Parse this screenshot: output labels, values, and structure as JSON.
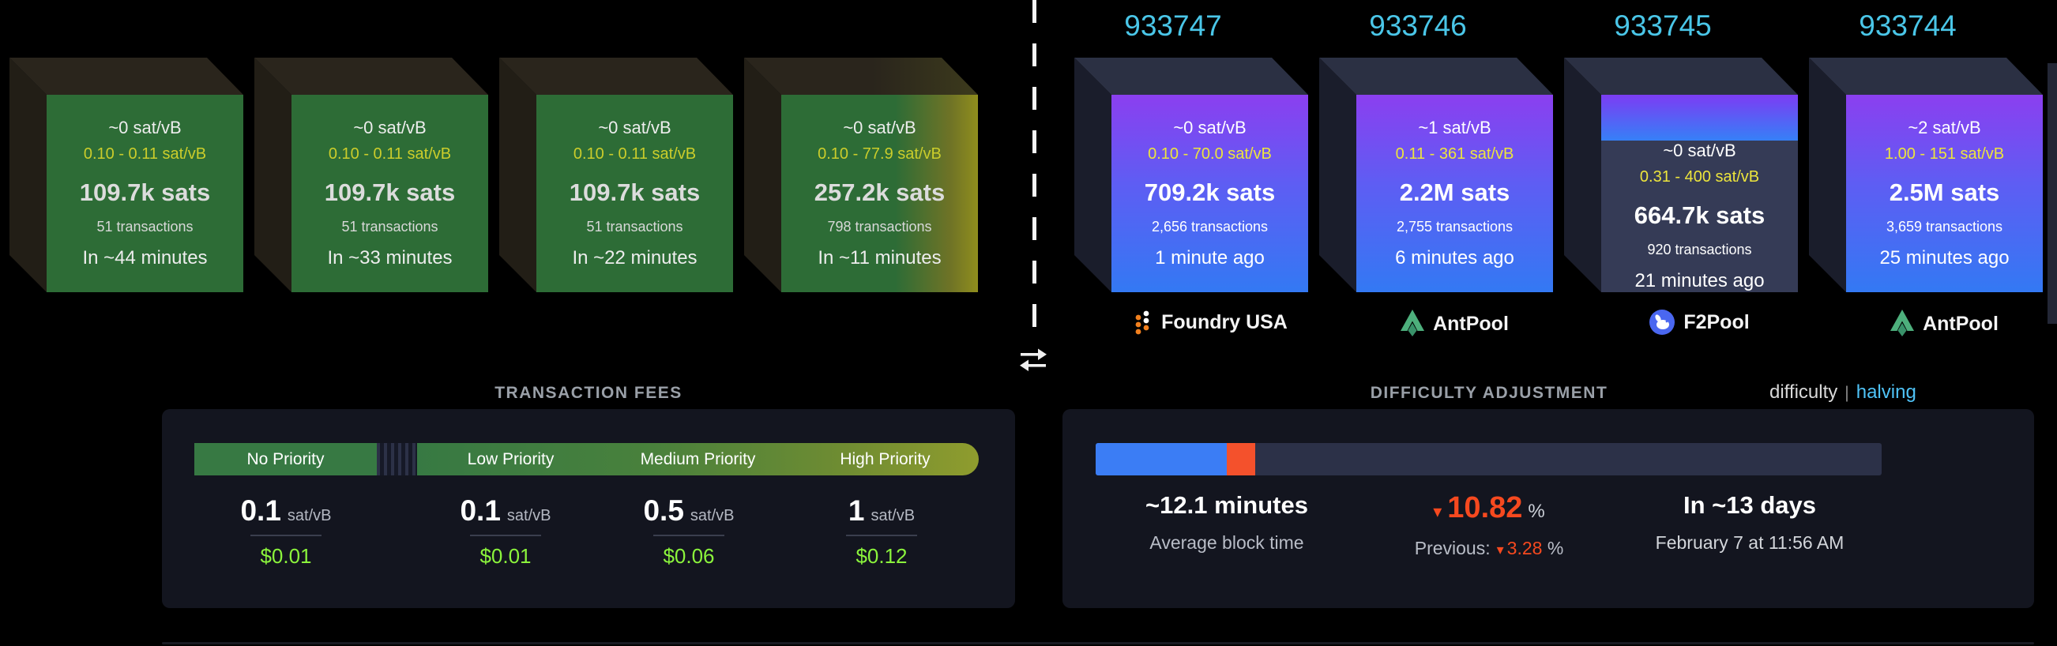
{
  "colors": {
    "height_link_cyan": "#4ac6e8",
    "fee_range_yellow": "#e8e337",
    "usd_green": "#8bf43c",
    "negative_red": "#f6491f",
    "progress_blue": "#3b7df5",
    "antpool_green": "#4daf7c",
    "f2pool_blue": "#4a67f0",
    "foundry_orange": "#f2801e"
  },
  "mempool_blocks": [
    {
      "median_fee": "~0 sat/vB",
      "fee_range": "0.10 - 0.11 sat/vB",
      "total_fees": "109.7k sats",
      "tx_count": "51 transactions",
      "eta": "In ~44 minutes"
    },
    {
      "median_fee": "~0 sat/vB",
      "fee_range": "0.10 - 0.11 sat/vB",
      "total_fees": "109.7k sats",
      "tx_count": "51 transactions",
      "eta": "In ~33 minutes"
    },
    {
      "median_fee": "~0 sat/vB",
      "fee_range": "0.10 - 0.11 sat/vB",
      "total_fees": "109.7k sats",
      "tx_count": "51 transactions",
      "eta": "In ~22 minutes"
    },
    {
      "median_fee": "~0 sat/vB",
      "fee_range": "0.10 - 77.9 sat/vB",
      "total_fees": "257.2k sats",
      "tx_count": "798 transactions",
      "eta": "In ~11 minutes"
    }
  ],
  "mined_blocks": [
    {
      "height": "933747",
      "median_fee": "~0 sat/vB",
      "fee_range": "0.10 - 70.0 sat/vB",
      "total_fees": "709.2k sats",
      "tx_count": "2,656 transactions",
      "mined_ago": "1 minute ago",
      "pool": "Foundry USA"
    },
    {
      "height": "933746",
      "median_fee": "~1 sat/vB",
      "fee_range": "0.11 - 361 sat/vB",
      "total_fees": "2.2M sats",
      "tx_count": "2,755 transactions",
      "mined_ago": "6 minutes ago",
      "pool": "AntPool"
    },
    {
      "height": "933745",
      "median_fee": "~0 sat/vB",
      "fee_range": "0.31 - 400 sat/vB",
      "total_fees": "664.7k sats",
      "tx_count": "920 transactions",
      "mined_ago": "21 minutes ago",
      "pool": "F2Pool"
    },
    {
      "height": "933744",
      "median_fee": "~2 sat/vB",
      "fee_range": "1.00 - 151 sat/vB",
      "total_fees": "2.5M sats",
      "tx_count": "3,659 transactions",
      "mined_ago": "25 minutes ago",
      "pool": "AntPool"
    }
  ],
  "fees_panel": {
    "title": "TRANSACTION FEES",
    "tiers": [
      {
        "label": "No Priority",
        "rate": "0.1",
        "unit": "sat/vB",
        "usd": "$0.01"
      },
      {
        "label": "Low Priority",
        "rate": "0.1",
        "unit": "sat/vB",
        "usd": "$0.01"
      },
      {
        "label": "Medium Priority",
        "rate": "0.5",
        "unit": "sat/vB",
        "usd": "$0.06"
      },
      {
        "label": "High Priority",
        "rate": "1",
        "unit": "sat/vB",
        "usd": "$0.12"
      }
    ]
  },
  "difficulty_panel": {
    "title": "DIFFICULTY ADJUSTMENT",
    "nav": {
      "difficulty": "difficulty",
      "separator": "|",
      "halving": "halving"
    },
    "progress": {
      "elapsed_pct": "16.7%",
      "behind_pct": "3.6%"
    },
    "avg_block_time": {
      "value": "~12.1 minutes",
      "label": "Average block time"
    },
    "change": {
      "arrow": "▾",
      "value": "10.82",
      "unit": "%"
    },
    "previous": {
      "label": "Previous:",
      "arrow": "▾",
      "value": "3.28",
      "unit": "%"
    },
    "retarget": {
      "value": "In ~13 days",
      "date": "February 7 at 11:56 AM"
    }
  }
}
